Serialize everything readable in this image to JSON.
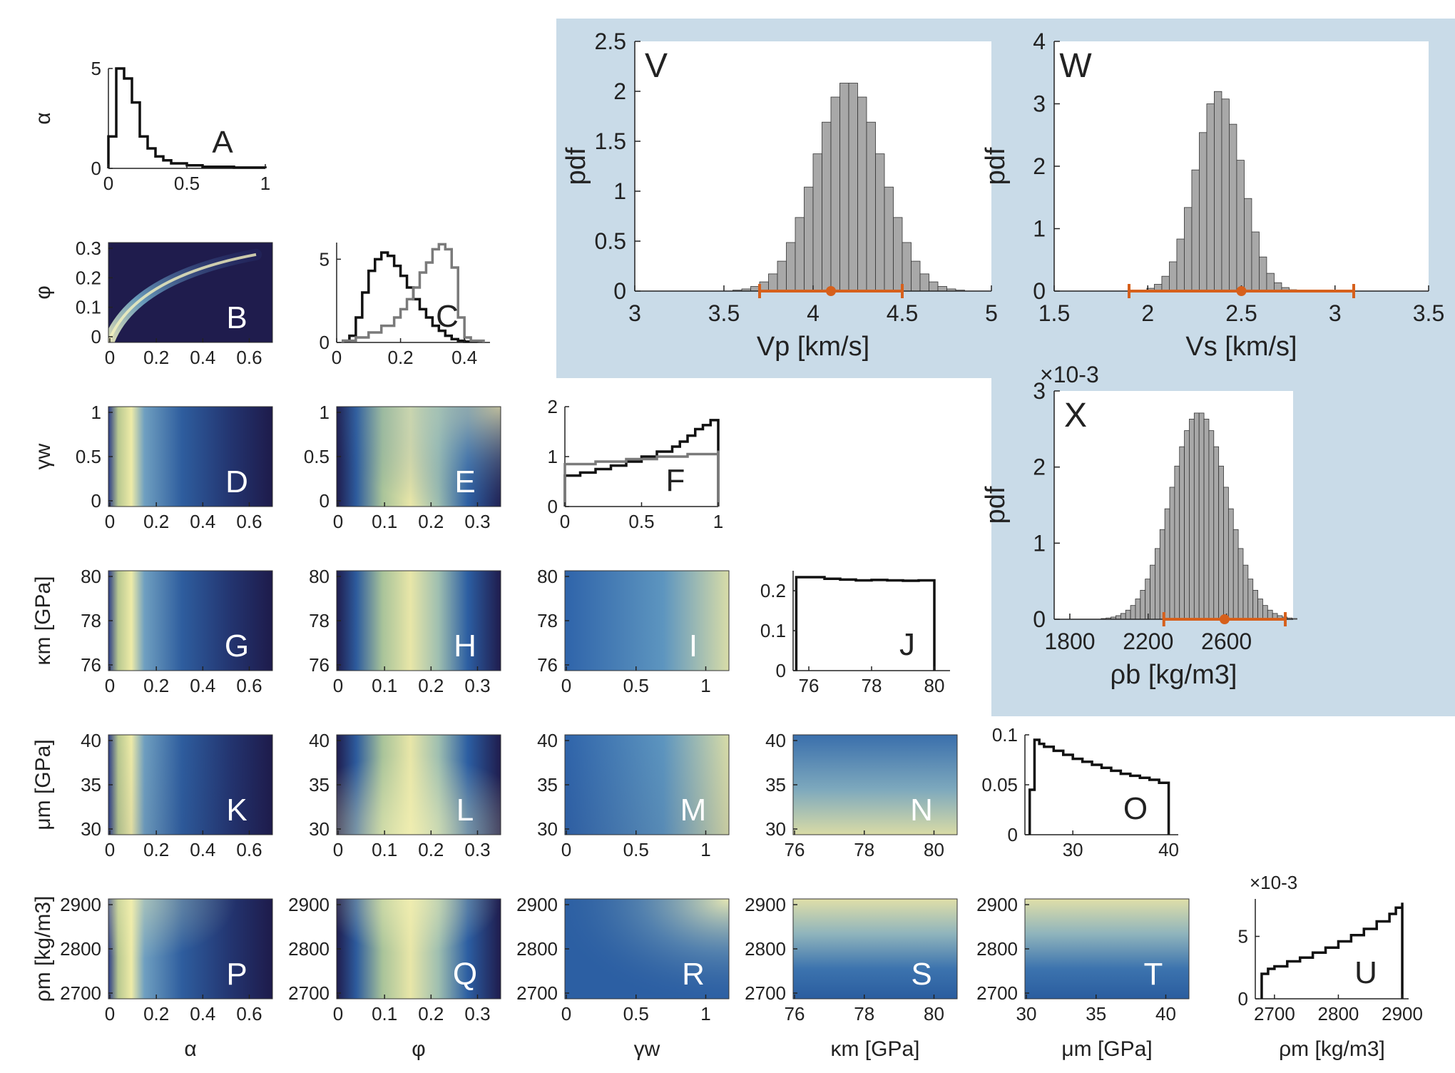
{
  "colors": {
    "background_box": "#c9dbe8",
    "posterior_bar": "#a8a8a8",
    "interval": "#d6601c",
    "hist_primary": "#111111",
    "hist_secondary": "#7a7a7a",
    "density_low": "#1f1c4d",
    "density_mid": "#2b6aaa",
    "density_high": "#f2f0b0"
  },
  "chart_data": [
    {
      "id": "A",
      "type": "line",
      "letter": "A",
      "ylabel": "α",
      "yticks": [
        "0",
        "5"
      ],
      "xticks": [
        "0",
        "0.5",
        "1"
      ],
      "xlim": [
        0,
        1
      ],
      "ylim": [
        0,
        5
      ],
      "series": [
        {
          "name": "",
          "color": "hist_primary",
          "x": [
            0,
            0.05,
            0.1,
            0.15,
            0.2,
            0.25,
            0.3,
            0.35,
            0.4,
            0.5,
            0.6,
            0.8,
            1.0
          ],
          "y": [
            1.6,
            5.0,
            4.5,
            3.3,
            1.6,
            1.0,
            0.6,
            0.4,
            0.25,
            0.15,
            0.08,
            0.04,
            0.02
          ]
        }
      ]
    },
    {
      "id": "B",
      "type": "heatmap",
      "letter": "B",
      "ylabel": "φ",
      "yticks": [
        "0",
        "0.1",
        "0.2",
        "0.3"
      ],
      "xticks": [
        "0",
        "0.2",
        "0.4",
        "0.6"
      ],
      "pattern": "curve"
    },
    {
      "id": "C",
      "type": "line",
      "letter": "C",
      "yticks": [
        "0",
        "5"
      ],
      "xticks": [
        "0",
        "0.2",
        "0.4"
      ],
      "xlim": [
        0,
        0.48
      ],
      "ylim": [
        0,
        6
      ],
      "series": [
        {
          "name": "",
          "color": "hist_primary",
          "x": [
            0.02,
            0.04,
            0.06,
            0.08,
            0.1,
            0.12,
            0.14,
            0.16,
            0.18,
            0.2,
            0.22,
            0.24,
            0.26,
            0.28,
            0.3,
            0.32,
            0.34,
            0.36,
            0.38,
            0.4,
            0.44
          ],
          "y": [
            0.1,
            0.4,
            1.5,
            3.0,
            4.3,
            5.0,
            5.4,
            5.2,
            4.6,
            4.0,
            3.3,
            2.6,
            2.0,
            1.5,
            1.0,
            0.7,
            0.4,
            0.2,
            0.1,
            0.05,
            0.0
          ]
        },
        {
          "name": "",
          "color": "hist_secondary",
          "x": [
            0.02,
            0.06,
            0.1,
            0.14,
            0.18,
            0.2,
            0.22,
            0.24,
            0.26,
            0.28,
            0.3,
            0.32,
            0.34,
            0.36,
            0.38,
            0.4,
            0.42,
            0.46
          ],
          "y": [
            0.1,
            0.3,
            0.6,
            1.0,
            1.5,
            2.0,
            2.6,
            3.3,
            4.2,
            4.8,
            5.6,
            5.9,
            5.6,
            4.5,
            1.5,
            0.3,
            0.1,
            0.05
          ]
        }
      ]
    },
    {
      "id": "D",
      "type": "heatmap",
      "letter": "D",
      "ylabel": "γw",
      "yticks": [
        "0",
        "0.5",
        "1"
      ],
      "xticks": [
        "0",
        "0.2",
        "0.4",
        "0.6"
      ],
      "pattern": "alpha"
    },
    {
      "id": "E",
      "type": "heatmap",
      "letter": "E",
      "yticks": [
        "0",
        "0.5",
        "1"
      ],
      "xticks": [
        "0",
        "0.1",
        "0.2",
        "0.3"
      ],
      "pattern": "phi_gamma"
    },
    {
      "id": "F",
      "type": "line",
      "letter": "F",
      "yticks": [
        "0",
        "1",
        "2"
      ],
      "xticks": [
        "0",
        "0.5",
        "1"
      ],
      "xlim": [
        0,
        1
      ],
      "ylim": [
        0,
        2
      ],
      "series": [
        {
          "name": "",
          "color": "hist_primary",
          "x": [
            0,
            0.1,
            0.2,
            0.3,
            0.4,
            0.5,
            0.6,
            0.7,
            0.75,
            0.8,
            0.85,
            0.9,
            0.95,
            1.0
          ],
          "y": [
            0.62,
            0.68,
            0.75,
            0.82,
            0.9,
            1.0,
            1.1,
            1.2,
            1.3,
            1.42,
            1.55,
            1.63,
            1.73,
            1.73
          ]
        },
        {
          "name": "",
          "color": "hist_secondary",
          "x": [
            0,
            0.2,
            0.4,
            0.6,
            0.8,
            1.0
          ],
          "y": [
            0.85,
            0.9,
            0.95,
            1.0,
            1.05,
            1.12
          ]
        }
      ]
    },
    {
      "id": "G",
      "type": "heatmap",
      "letter": "G",
      "ylabel": "κm [GPa]",
      "yticks": [
        "76",
        "78",
        "80"
      ],
      "xticks": [
        "0",
        "0.2",
        "0.4",
        "0.6"
      ],
      "pattern": "alpha"
    },
    {
      "id": "H",
      "type": "heatmap",
      "letter": "H",
      "yticks": [
        "76",
        "78",
        "80"
      ],
      "xticks": [
        "0",
        "0.1",
        "0.2",
        "0.3"
      ],
      "pattern": "phi"
    },
    {
      "id": "I",
      "type": "heatmap",
      "letter": "I",
      "yticks": [
        "76",
        "78",
        "80"
      ],
      "xticks": [
        "0",
        "0.5",
        "1"
      ],
      "pattern": "gamma"
    },
    {
      "id": "J",
      "type": "line",
      "letter": "J",
      "yticks": [
        "0",
        "0.1",
        "0.2"
      ],
      "xticks": [
        "76",
        "78",
        "80"
      ],
      "xlim": [
        75.5,
        80.5
      ],
      "ylim": [
        0,
        0.25
      ],
      "series": [
        {
          "name": "",
          "color": "hist_primary",
          "x": [
            75.6,
            76,
            76.5,
            77,
            77.5,
            78,
            78.5,
            79,
            79.5,
            80
          ],
          "y": [
            0.234,
            0.234,
            0.23,
            0.228,
            0.226,
            0.227,
            0.226,
            0.225,
            0.226,
            0.224
          ]
        }
      ]
    },
    {
      "id": "K",
      "type": "heatmap",
      "letter": "K",
      "ylabel": "μm [GPa]",
      "yticks": [
        "30",
        "35",
        "40"
      ],
      "xticks": [
        "0",
        "0.2",
        "0.4",
        "0.6"
      ],
      "pattern": "alpha_mu"
    },
    {
      "id": "L",
      "type": "heatmap",
      "letter": "L",
      "yticks": [
        "30",
        "35",
        "40"
      ],
      "xticks": [
        "0",
        "0.1",
        "0.2",
        "0.3"
      ],
      "pattern": "phi_mu"
    },
    {
      "id": "M",
      "type": "heatmap",
      "letter": "M",
      "yticks": [
        "30",
        "35",
        "40"
      ],
      "xticks": [
        "0",
        "0.5",
        "1"
      ],
      "pattern": "gamma_mu"
    },
    {
      "id": "N",
      "type": "heatmap",
      "letter": "N",
      "yticks": [
        "30",
        "35",
        "40"
      ],
      "xticks": [
        "76",
        "78",
        "80"
      ],
      "pattern": "bottom"
    },
    {
      "id": "O",
      "type": "line",
      "letter": "O",
      "yticks": [
        "0",
        "0.05",
        "0.1"
      ],
      "xticks": [
        "30",
        "40"
      ],
      "xlim": [
        25,
        41
      ],
      "ylim": [
        0,
        0.1
      ],
      "series": [
        {
          "name": "",
          "color": "hist_primary",
          "x": [
            25.5,
            26,
            26.5,
            27,
            28,
            29,
            30,
            31,
            32,
            33,
            34,
            35,
            36,
            37,
            38,
            39,
            40
          ],
          "y": [
            0.045,
            0.095,
            0.091,
            0.088,
            0.084,
            0.08,
            0.076,
            0.073,
            0.07,
            0.067,
            0.064,
            0.061,
            0.059,
            0.057,
            0.055,
            0.052,
            0.049
          ]
        }
      ]
    },
    {
      "id": "P",
      "type": "heatmap",
      "letter": "P",
      "ylabel": "ρm [kg/m3]",
      "yticks": [
        "2700",
        "2800",
        "2900"
      ],
      "xticks": [
        "0",
        "0.2",
        "0.4",
        "0.6"
      ],
      "xlabel": "α",
      "pattern": "alpha_rho"
    },
    {
      "id": "Q",
      "type": "heatmap",
      "letter": "Q",
      "yticks": [
        "2700",
        "2800",
        "2900"
      ],
      "xticks": [
        "0",
        "0.1",
        "0.2",
        "0.3"
      ],
      "xlabel": "φ",
      "pattern": "phi_rho"
    },
    {
      "id": "R",
      "type": "heatmap",
      "letter": "R",
      "yticks": [
        "2700",
        "2800",
        "2900"
      ],
      "xticks": [
        "0",
        "0.5",
        "1"
      ],
      "xlabel": "γw",
      "pattern": "gamma_rho"
    },
    {
      "id": "S",
      "type": "heatmap",
      "letter": "S",
      "yticks": [
        "2700",
        "2800",
        "2900"
      ],
      "xticks": [
        "76",
        "78",
        "80"
      ],
      "xlabel": "κm [GPa]",
      "pattern": "top"
    },
    {
      "id": "T",
      "type": "heatmap",
      "letter": "T",
      "yticks": [
        "2700",
        "2800",
        "2900"
      ],
      "xticks": [
        "30",
        "35",
        "40"
      ],
      "xlabel": "μm [GPa]",
      "pattern": "top"
    },
    {
      "id": "U",
      "type": "line",
      "letter": "U",
      "yticks": [
        "0",
        "5"
      ],
      "xticks": [
        "2700",
        "2800",
        "2900"
      ],
      "xlim": [
        2670,
        2910
      ],
      "ylim": [
        0,
        8
      ],
      "yexponent": "×10-3",
      "xlabel": "ρm [kg/m3]",
      "series": [
        {
          "name": "",
          "color": "hist_primary",
          "x": [
            2680,
            2690,
            2700,
            2720,
            2740,
            2760,
            2780,
            2800,
            2820,
            2840,
            2860,
            2880,
            2890,
            2900
          ],
          "y": [
            2.0,
            2.4,
            2.6,
            3.0,
            3.3,
            3.7,
            4.1,
            4.6,
            5.1,
            5.6,
            6.2,
            6.8,
            7.3,
            7.7
          ]
        }
      ]
    },
    {
      "id": "V",
      "type": "bar",
      "letter": "V",
      "ylabel": "pdf",
      "xlabel": "Vp [km/s]",
      "xticks": [
        "3",
        "3.5",
        "4",
        "4.5",
        "5"
      ],
      "yticks": [
        "0",
        "0.5",
        "1",
        "1.5",
        "2",
        "2.5"
      ],
      "xlim": [
        3,
        5
      ],
      "ylim": [
        0,
        2.5
      ],
      "mean": 4.2,
      "sd": 0.19,
      "peak": 2.1,
      "bin_width": 0.05,
      "interval": {
        "low": 3.7,
        "high": 4.5,
        "point": 4.1
      }
    },
    {
      "id": "W",
      "type": "bar",
      "letter": "W",
      "ylabel": "pdf",
      "xlabel": "Vs [km/s]",
      "xticks": [
        "1.5",
        "2",
        "2.5",
        "3",
        "3.5"
      ],
      "yticks": [
        "0",
        "1",
        "2",
        "3",
        "4"
      ],
      "xlim": [
        1.5,
        3.5
      ],
      "ylim": [
        0,
        4
      ],
      "mean": 2.38,
      "sd": 0.125,
      "peak": 3.2,
      "bin_width": 0.04,
      "interval": {
        "low": 1.9,
        "high": 3.1,
        "point": 2.5
      }
    },
    {
      "id": "X",
      "type": "bar",
      "letter": "X",
      "ylabel": "pdf",
      "xlabel": "ρb [kg/m3]",
      "xticks": [
        "1800",
        "2200",
        "2600"
      ],
      "yticks": [
        "0",
        "1",
        "2",
        "3"
      ],
      "yexponent": "×10-3",
      "xlim": [
        1720,
        2940
      ],
      "ylim": [
        0,
        3
      ],
      "mean": 2460,
      "sd": 145,
      "peak": 2.72,
      "bin_width": 25,
      "interval": {
        "low": 2280,
        "high": 2900,
        "point": 2590
      }
    }
  ]
}
